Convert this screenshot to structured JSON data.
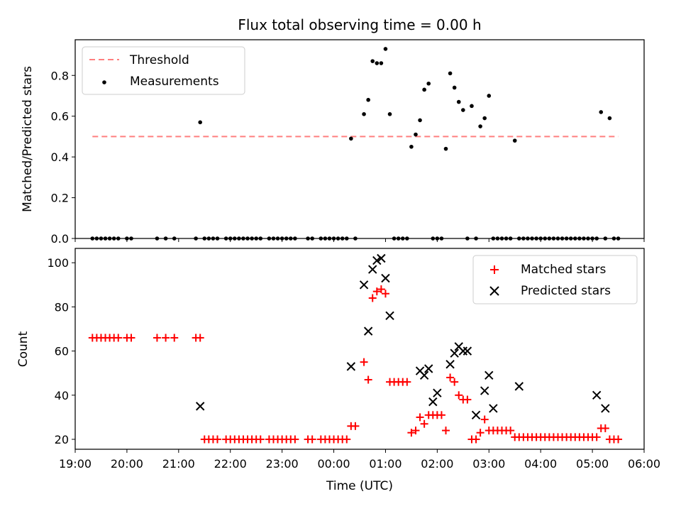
{
  "chart_data": [
    {
      "type": "scatter",
      "title": "Flux total observing time = 0.00 h",
      "xlabel": "",
      "ylabel": "Matched/Predicted stars",
      "xlim": [
        "19:00",
        "06:00"
      ],
      "ylim": [
        0,
        0.975
      ],
      "yticks": [
        "0.0",
        "0.2",
        "0.4",
        "0.6",
        "0.8"
      ],
      "legend_position": "top-left",
      "threshold": {
        "name": "Threshold",
        "y": 0.5,
        "x_start": "19:20",
        "x_end": "05:30",
        "color": "#ff7f7f",
        "style": "dashed"
      },
      "series": [
        {
          "name": "Measurements",
          "color": "#000000",
          "marker": "dot",
          "x": [
            "19:20",
            "19:25",
            "19:30",
            "19:35",
            "19:40",
            "19:45",
            "19:50",
            "20:00",
            "20:05",
            "20:35",
            "20:45",
            "20:55",
            "21:20",
            "21:25",
            "21:30",
            "21:35",
            "21:40",
            "21:45",
            "21:55",
            "22:00",
            "22:05",
            "22:10",
            "22:15",
            "22:20",
            "22:25",
            "22:30",
            "22:35",
            "22:45",
            "22:50",
            "22:55",
            "23:00",
            "23:05",
            "23:10",
            "23:15",
            "23:30",
            "23:35",
            "23:45",
            "23:50",
            "23:55",
            "00:00",
            "00:05",
            "00:10",
            "00:15",
            "00:20",
            "00:25",
            "00:35",
            "00:40",
            "00:45",
            "00:50",
            "00:55",
            "01:00",
            "01:05",
            "01:10",
            "01:15",
            "01:20",
            "01:25",
            "01:30",
            "01:35",
            "01:40",
            "01:45",
            "01:50",
            "01:55",
            "02:00",
            "02:05",
            "02:10",
            "02:15",
            "02:20",
            "02:25",
            "02:30",
            "02:35",
            "02:40",
            "02:45",
            "02:50",
            "02:55",
            "03:00",
            "03:05",
            "03:10",
            "03:15",
            "03:20",
            "03:25",
            "03:30",
            "03:35",
            "03:40",
            "03:45",
            "03:50",
            "03:55",
            "04:00",
            "04:05",
            "04:10",
            "04:15",
            "04:20",
            "04:25",
            "04:30",
            "04:35",
            "04:40",
            "04:45",
            "04:50",
            "04:55",
            "05:00",
            "05:05",
            "05:10",
            "05:15",
            "05:20",
            "05:25",
            "05:30"
          ],
          "values": [
            0,
            0,
            0,
            0,
            0,
            0,
            0,
            0,
            0,
            0,
            0,
            0,
            0,
            0.57,
            0,
            0,
            0,
            0,
            0,
            0,
            0,
            0,
            0,
            0,
            0,
            0,
            0,
            0,
            0,
            0,
            0,
            0,
            0,
            0,
            0,
            0,
            0,
            0,
            0,
            0,
            0,
            0,
            0,
            0.49,
            0,
            0.61,
            0.68,
            0.87,
            0.86,
            0.86,
            0.93,
            0.61,
            0,
            0,
            0,
            0,
            0.45,
            0.51,
            0.58,
            0.73,
            0.76,
            0,
            0,
            0,
            0.44,
            0.81,
            0.74,
            0.67,
            0.63,
            0,
            0.65,
            0,
            0.55,
            0.59,
            0.7,
            0,
            0,
            0,
            0,
            0,
            0.48,
            0,
            0,
            0,
            0,
            0,
            0,
            0,
            0,
            0,
            0,
            0,
            0,
            0,
            0,
            0,
            0,
            0,
            0,
            0,
            0.62,
            0,
            0.59,
            0,
            0
          ]
        }
      ]
    },
    {
      "type": "scatter",
      "title": "",
      "xlabel": "Time (UTC)",
      "ylabel": "Count",
      "xlim": [
        "19:00",
        "06:00"
      ],
      "ylim": [
        15.5,
        106.5
      ],
      "xticks": [
        "19:00",
        "20:00",
        "21:00",
        "22:00",
        "23:00",
        "00:00",
        "01:00",
        "02:00",
        "03:00",
        "04:00",
        "05:00",
        "06:00"
      ],
      "yticks": [
        "20",
        "40",
        "60",
        "80",
        "100"
      ],
      "legend_position": "top-right",
      "series": [
        {
          "name": "Matched stars",
          "color": "#ff0000",
          "marker": "plus",
          "x": [
            "19:20",
            "19:25",
            "19:30",
            "19:35",
            "19:40",
            "19:45",
            "19:50",
            "20:00",
            "20:05",
            "20:35",
            "20:45",
            "20:55",
            "21:20",
            "21:25",
            "21:30",
            "21:35",
            "21:40",
            "21:45",
            "21:55",
            "22:00",
            "22:05",
            "22:10",
            "22:15",
            "22:20",
            "22:25",
            "22:30",
            "22:35",
            "22:45",
            "22:50",
            "22:55",
            "23:00",
            "23:05",
            "23:10",
            "23:15",
            "23:30",
            "23:35",
            "23:45",
            "23:50",
            "23:55",
            "00:00",
            "00:05",
            "00:10",
            "00:15",
            "00:20",
            "00:25",
            "00:35",
            "00:40",
            "00:45",
            "00:50",
            "00:55",
            "01:00",
            "01:05",
            "01:10",
            "01:15",
            "01:20",
            "01:25",
            "01:30",
            "01:35",
            "01:40",
            "01:45",
            "01:50",
            "01:55",
            "02:00",
            "02:05",
            "02:10",
            "02:15",
            "02:20",
            "02:25",
            "02:30",
            "02:35",
            "02:40",
            "02:45",
            "02:50",
            "02:55",
            "03:00",
            "03:05",
            "03:10",
            "03:15",
            "03:20",
            "03:25",
            "03:30",
            "03:35",
            "03:40",
            "03:45",
            "03:50",
            "03:55",
            "04:00",
            "04:05",
            "04:10",
            "04:15",
            "04:20",
            "04:25",
            "04:30",
            "04:35",
            "04:40",
            "04:45",
            "04:50",
            "04:55",
            "05:00",
            "05:05",
            "05:10",
            "05:15",
            "05:20",
            "05:25",
            "05:30"
          ],
          "values": [
            66,
            66,
            66,
            66,
            66,
            66,
            66,
            66,
            66,
            66,
            66,
            66,
            66,
            66,
            20,
            20,
            20,
            20,
            20,
            20,
            20,
            20,
            20,
            20,
            20,
            20,
            20,
            20,
            20,
            20,
            20,
            20,
            20,
            20,
            20,
            20,
            20,
            20,
            20,
            20,
            20,
            20,
            20,
            26,
            26,
            55,
            47,
            84,
            87,
            88,
            86,
            46,
            46,
            46,
            46,
            46,
            23,
            24,
            30,
            27,
            31,
            31,
            31,
            31,
            24,
            48,
            46,
            40,
            38,
            38,
            20,
            20,
            23,
            29,
            24,
            24,
            24,
            24,
            24,
            24,
            21,
            21,
            21,
            21,
            21,
            21,
            21,
            21,
            21,
            21,
            21,
            21,
            21,
            21,
            21,
            21,
            21,
            21,
            21,
            21,
            25,
            25,
            20,
            20,
            20
          ]
        },
        {
          "name": "Predicted stars",
          "color": "#000000",
          "marker": "x",
          "x": [
            "21:25",
            "00:20",
            "00:35",
            "00:40",
            "00:45",
            "00:50",
            "00:55",
            "01:00",
            "01:05",
            "01:40",
            "01:45",
            "01:50",
            "01:55",
            "02:00",
            "02:15",
            "02:20",
            "02:25",
            "02:30",
            "02:35",
            "02:45",
            "02:55",
            "03:00",
            "03:05",
            "03:35",
            "05:05",
            "05:15"
          ],
          "values": [
            35,
            53,
            90,
            69,
            97,
            101,
            102,
            93,
            76,
            51,
            49,
            52,
            37,
            41,
            54,
            59,
            62,
            60,
            60,
            31,
            42,
            49,
            34,
            44,
            40,
            34
          ]
        }
      ]
    }
  ]
}
